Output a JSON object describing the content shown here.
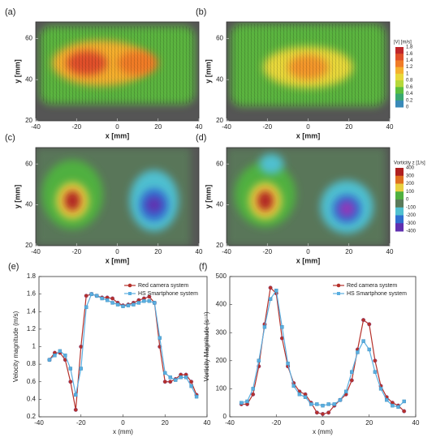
{
  "chart_data": [
    {
      "type": "vector-field",
      "panel": "(a)",
      "xlabel": "x [mm]",
      "ylabel": "y [mm]",
      "xlim": [
        -40,
        40
      ],
      "ylim": [
        20,
        68
      ],
      "xticks": [
        -40,
        -20,
        0,
        20,
        40
      ],
      "yticks": [
        20,
        40,
        60
      ],
      "region": {
        "xlim": [
          -38,
          38
        ],
        "ylim": [
          28,
          66
        ],
        "value": 0.6
      },
      "peaks": [
        {
          "x": -8,
          "y": 48,
          "rx": 24,
          "ry": 11,
          "value": 1.2
        },
        {
          "x": -15,
          "y": 48,
          "rx": 10,
          "ry": 6,
          "value": 1.6
        },
        {
          "x": 10,
          "y": 48,
          "rx": 10,
          "ry": 6,
          "value": 1.4
        }
      ]
    },
    {
      "type": "vector-field",
      "panel": "(b)",
      "xlabel": "x [mm]",
      "ylabel": "y [mm]",
      "xlim": [
        -40,
        40
      ],
      "ylim": [
        20,
        68
      ],
      "xticks": [
        -40,
        -20,
        0,
        20,
        40
      ],
      "yticks": [
        20,
        40,
        60
      ],
      "region": {
        "xlim": [
          -38,
          38
        ],
        "ylim": [
          27,
          67
        ],
        "value": 0.6
      },
      "peaks": [
        {
          "x": 0,
          "y": 46,
          "rx": 22,
          "ry": 10,
          "value": 1.0
        },
        {
          "x": 0,
          "y": 46,
          "rx": 10,
          "ry": 6,
          "value": 1.3
        }
      ],
      "colorbar": {
        "label": "|V| [m/s]",
        "ticks": [
          1.8,
          1.6,
          1.4,
          1.2,
          1,
          0.8,
          0.6,
          0.4,
          0.2,
          0
        ],
        "colors": [
          "#c0262a",
          "#e0502a",
          "#f07c28",
          "#f5b02e",
          "#e8d83a",
          "#b5d83a",
          "#5cbf3e",
          "#3aa870",
          "#3a8ab8",
          "#3a4aa8"
        ]
      }
    },
    {
      "type": "heatmap",
      "panel": "(c)",
      "xlabel": "x [mm]",
      "ylabel": "y [mm]",
      "xlim": [
        -40,
        40
      ],
      "ylim": [
        20,
        68
      ],
      "xticks": [
        -40,
        -20,
        0,
        20,
        40
      ],
      "yticks": [
        20,
        40,
        60
      ],
      "region": {
        "xlim": [
          -40,
          36
        ],
        "ylim": [
          20,
          68
        ],
        "value": 0
      },
      "peaks": [
        {
          "x": -22,
          "y": 45,
          "rx": 15,
          "ry": 17,
          "value": 100
        },
        {
          "x": -22,
          "y": 42,
          "rx": 8,
          "ry": 9,
          "value": 200
        },
        {
          "x": -22,
          "y": 42,
          "rx": 4,
          "ry": 5,
          "value": 400
        },
        {
          "x": 18,
          "y": 42,
          "rx": 12,
          "ry": 15,
          "value": -100
        },
        {
          "x": 18,
          "y": 40,
          "rx": 7,
          "ry": 8,
          "value": -200
        },
        {
          "x": 18,
          "y": 40,
          "rx": 4,
          "ry": 4,
          "value": -300
        }
      ]
    },
    {
      "type": "heatmap",
      "panel": "(d)",
      "xlabel": "x [mm]",
      "ylabel": "y [mm]",
      "xlim": [
        -40,
        40
      ],
      "ylim": [
        20,
        68
      ],
      "xticks": [
        -40,
        -20,
        0,
        20,
        40
      ],
      "yticks": [
        20,
        40,
        60
      ],
      "region": {
        "xlim": [
          -40,
          38
        ],
        "ylim": [
          20,
          68
        ],
        "value": 0
      },
      "peaks": [
        {
          "x": -21,
          "y": 45,
          "rx": 15,
          "ry": 16,
          "value": 100
        },
        {
          "x": -18,
          "y": 60,
          "rx": 6,
          "ry": 5,
          "value": -100
        },
        {
          "x": -21,
          "y": 42,
          "rx": 8,
          "ry": 9,
          "value": 200
        },
        {
          "x": -21,
          "y": 42,
          "rx": 4,
          "ry": 5,
          "value": 400
        },
        {
          "x": 19,
          "y": 39,
          "rx": 13,
          "ry": 13,
          "value": -100
        },
        {
          "x": 19,
          "y": 38,
          "rx": 7,
          "ry": 7,
          "value": -200
        },
        {
          "x": 19,
          "y": 38,
          "rx": 4,
          "ry": 4,
          "value": -350
        }
      ],
      "colorbar": {
        "label": "Vorticity z [1/s]",
        "ticks": [
          400,
          300,
          200,
          100,
          0,
          -100,
          -200,
          -300,
          -400
        ],
        "colors": [
          "#b02020",
          "#e07020",
          "#e8d040",
          "#50b040",
          "#5a7a5a",
          "#50c0d0",
          "#3070d0",
          "#6030b0",
          "#c040c0"
        ]
      }
    },
    {
      "type": "line",
      "panel": "(e)",
      "xlabel": "x (mm)",
      "ylabel": "Velocity magnitude (m/s)",
      "xlim": [
        -40,
        40
      ],
      "ylim": [
        0.2,
        1.8
      ],
      "xticks": [
        -40,
        -20,
        0,
        20,
        40
      ],
      "yticks": [
        0.2,
        0.4,
        0.6,
        0.8,
        1,
        1.2,
        1.4,
        1.6,
        1.8
      ],
      "legend": "upper right",
      "x": [
        -35,
        -32.5,
        -30,
        -27.5,
        -25,
        -22.5,
        -20,
        -17.5,
        -15,
        -12.5,
        -10,
        -7.5,
        -5,
        -2.5,
        0,
        2.5,
        5,
        7.5,
        10,
        12.5,
        15,
        17.5,
        20,
        22.5,
        25,
        27.5,
        30,
        32.5,
        35
      ],
      "series": [
        {
          "name": "Red camera system",
          "color": "#b5302a",
          "values": [
            0.85,
            0.93,
            0.93,
            0.85,
            0.6,
            0.28,
            1.0,
            1.58,
            1.6,
            1.58,
            1.56,
            1.56,
            1.55,
            1.5,
            1.47,
            1.48,
            1.5,
            1.53,
            1.55,
            1.57,
            1.5,
            1.0,
            0.6,
            0.6,
            0.63,
            0.68,
            0.68,
            0.6,
            0.45
          ]
        },
        {
          "name": "HS Smartphone system",
          "color": "#5aaee0",
          "values": [
            0.85,
            0.9,
            0.95,
            0.9,
            0.75,
            0.45,
            0.75,
            1.45,
            1.6,
            1.58,
            1.55,
            1.53,
            1.5,
            1.48,
            1.46,
            1.47,
            1.48,
            1.5,
            1.52,
            1.52,
            1.5,
            1.1,
            0.7,
            0.65,
            0.62,
            0.65,
            0.65,
            0.55,
            0.43
          ]
        }
      ]
    },
    {
      "type": "line",
      "panel": "(f)",
      "xlabel": "x (mm)",
      "ylabel": "Vorticity Magnitude (s⁻¹)",
      "xlim": [
        -40,
        40
      ],
      "ylim": [
        0,
        500
      ],
      "xticks": [
        -40,
        -20,
        0,
        20,
        40
      ],
      "yticks": [
        0,
        100,
        200,
        300,
        400,
        500
      ],
      "legend": "upper right",
      "x": [
        -35,
        -32.5,
        -30,
        -27.5,
        -25,
        -22.5,
        -20,
        -17.5,
        -15,
        -12.5,
        -10,
        -7.5,
        -5,
        -2.5,
        0,
        2.5,
        5,
        7.5,
        10,
        12.5,
        15,
        17.5,
        20,
        22.5,
        25,
        27.5,
        30,
        32.5,
        35
      ],
      "series": [
        {
          "name": "Red camera system",
          "color": "#b5302a",
          "values": [
            45,
            45,
            80,
            180,
            330,
            460,
            440,
            280,
            180,
            120,
            90,
            80,
            50,
            15,
            10,
            15,
            40,
            60,
            80,
            130,
            240,
            345,
            330,
            200,
            110,
            70,
            50,
            40,
            20
          ]
        },
        {
          "name": "HS Smartphone system",
          "color": "#5aaee0",
          "values": [
            50,
            55,
            100,
            200,
            320,
            420,
            450,
            320,
            190,
            110,
            80,
            70,
            45,
            45,
            40,
            45,
            45,
            60,
            90,
            160,
            230,
            270,
            240,
            160,
            100,
            60,
            40,
            35,
            55
          ]
        }
      ]
    }
  ]
}
